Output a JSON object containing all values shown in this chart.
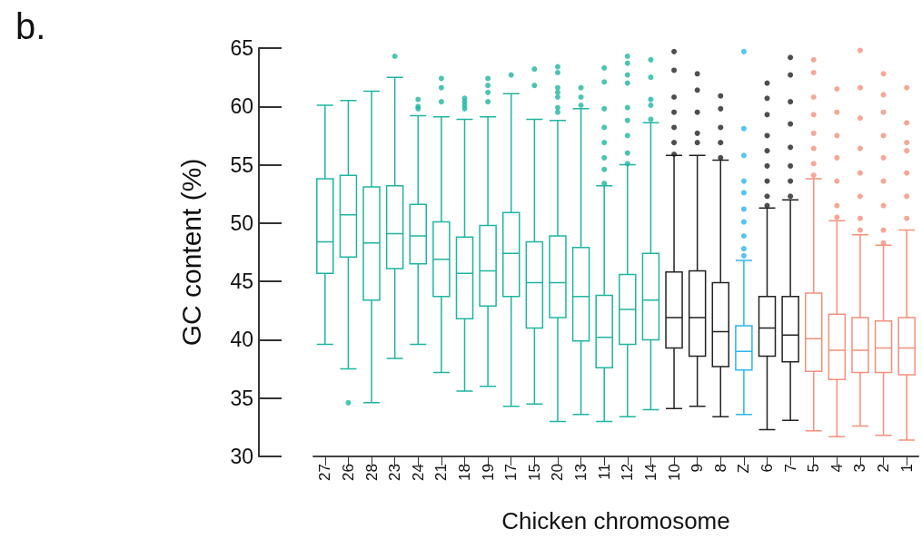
{
  "chart_data": {
    "type": "box",
    "title": "b.",
    "xlabel": "Chicken chromosome",
    "ylabel": "GC content (%)",
    "categories": [
      "27",
      "26",
      "28",
      "23",
      "24",
      "21",
      "18",
      "19",
      "17",
      "15",
      "20",
      "13",
      "11",
      "12",
      "14",
      "10",
      "9",
      "8",
      "Z",
      "6",
      "7",
      "5",
      "4",
      "3",
      "2",
      "1"
    ],
    "colors": [
      "#1fb5a0",
      "#1fb5a0",
      "#1fb5a0",
      "#1fb5a0",
      "#1fb5a0",
      "#1fb5a0",
      "#1fb5a0",
      "#1fb5a0",
      "#1fb5a0",
      "#1fb5a0",
      "#1fb5a0",
      "#1fb5a0",
      "#1fb5a0",
      "#1fb5a0",
      "#1fb5a0",
      "#222222",
      "#222222",
      "#222222",
      "#2bb5ee",
      "#222222",
      "#222222",
      "#f5907a",
      "#f5907a",
      "#f5907a",
      "#f5907a",
      "#f5907a"
    ],
    "ylim": [
      30,
      65
    ],
    "yticks": [
      30,
      35,
      40,
      45,
      50,
      55,
      60,
      65
    ],
    "grid": false,
    "boxes": [
      {
        "low": 39.6,
        "q1": 45.7,
        "median": 48.4,
        "q3": 53.8,
        "high": 60.1
      },
      {
        "low": 37.5,
        "q1": 47.1,
        "median": 50.7,
        "q3": 54.1,
        "high": 60.5,
        "outliers": [
          34.6
        ]
      },
      {
        "low": 34.6,
        "q1": 43.4,
        "median": 48.3,
        "q3": 53.1,
        "high": 61.3
      },
      {
        "low": 38.4,
        "q1": 46.1,
        "median": 49.1,
        "q3": 53.2,
        "high": 62.5,
        "outliers": [
          64.3
        ]
      },
      {
        "low": 39.6,
        "q1": 46.5,
        "median": 48.9,
        "q3": 51.6,
        "high": 59.2,
        "outliers": [
          60.6,
          60.0,
          59.8
        ]
      },
      {
        "low": 37.2,
        "q1": 43.7,
        "median": 46.9,
        "q3": 50.1,
        "high": 59.1,
        "outliers": [
          62.4,
          61.6,
          60.4
        ]
      },
      {
        "low": 35.6,
        "q1": 41.8,
        "median": 45.7,
        "q3": 48.8,
        "high": 58.9,
        "outliers": [
          60.7,
          60.4,
          60.1,
          59.8
        ]
      },
      {
        "low": 36.0,
        "q1": 42.9,
        "median": 45.9,
        "q3": 49.8,
        "high": 59.1,
        "outliers": [
          62.4,
          61.8,
          61.2,
          60.4
        ]
      },
      {
        "low": 34.3,
        "q1": 43.7,
        "median": 47.4,
        "q3": 50.9,
        "high": 61.1,
        "outliers": [
          62.7
        ]
      },
      {
        "low": 34.5,
        "q1": 41.0,
        "median": 44.9,
        "q3": 48.4,
        "high": 58.9,
        "outliers": [
          63.2,
          61.8
        ]
      },
      {
        "low": 33.0,
        "q1": 41.9,
        "median": 44.9,
        "q3": 48.9,
        "high": 58.8,
        "outliers": [
          63.4,
          62.9,
          61.6,
          61.2,
          60.8,
          59.9,
          59.5
        ]
      },
      {
        "low": 33.6,
        "q1": 39.9,
        "median": 43.7,
        "q3": 47.9,
        "high": 59.8,
        "outliers": [
          61.6,
          60.8,
          60.1
        ]
      },
      {
        "low": 33.0,
        "q1": 37.6,
        "median": 40.2,
        "q3": 43.8,
        "high": 53.2,
        "outliers": [
          63.3,
          62.1,
          59.8,
          58.2,
          56.9,
          55.6,
          54.6,
          53.4
        ]
      },
      {
        "low": 33.4,
        "q1": 39.6,
        "median": 42.6,
        "q3": 45.6,
        "high": 55.0,
        "outliers": [
          64.3,
          63.7,
          62.7,
          62.0,
          59.9,
          58.8,
          57.5,
          56.0,
          55.1
        ]
      },
      {
        "low": 34.0,
        "q1": 40.0,
        "median": 43.4,
        "q3": 47.4,
        "high": 58.6,
        "outliers": [
          64.0,
          62.5,
          60.6,
          60.1,
          58.9
        ]
      },
      {
        "low": 34.1,
        "q1": 39.3,
        "median": 41.9,
        "q3": 45.8,
        "high": 55.8,
        "outliers": [
          64.7,
          63.1,
          60.8,
          59.5,
          58.2,
          56.9,
          55.9
        ]
      },
      {
        "low": 34.3,
        "q1": 38.6,
        "median": 41.9,
        "q3": 45.9,
        "high": 55.8,
        "outliers": [
          62.8,
          61.4,
          59.5,
          57.7,
          56.9
        ]
      },
      {
        "low": 33.4,
        "q1": 37.7,
        "median": 40.7,
        "q3": 44.9,
        "high": 55.4,
        "outliers": [
          60.9,
          59.8,
          58.2,
          56.9,
          55.6
        ]
      },
      {
        "low": 33.6,
        "q1": 37.4,
        "median": 39.0,
        "q3": 41.2,
        "high": 46.8,
        "outliers": [
          64.7,
          58.1,
          55.8,
          53.6,
          52.6,
          51.2,
          50.1,
          48.9,
          47.8,
          47.2
        ]
      },
      {
        "low": 32.3,
        "q1": 38.6,
        "median": 41.0,
        "q3": 43.7,
        "high": 51.3,
        "outliers": [
          62.0,
          60.7,
          59.3,
          57.5,
          56.2,
          54.9,
          53.6,
          52.3,
          51.5
        ]
      },
      {
        "low": 33.1,
        "q1": 38.1,
        "median": 40.4,
        "q3": 43.7,
        "high": 52.0,
        "outliers": [
          64.2,
          62.7,
          60.4,
          58.5,
          56.5,
          54.9,
          53.6,
          52.3
        ]
      },
      {
        "low": 32.2,
        "q1": 37.3,
        "median": 40.1,
        "q3": 44.0,
        "high": 53.8,
        "outliers": [
          64.0,
          62.9,
          60.8,
          59.3,
          57.7,
          56.4,
          55.1,
          54.1
        ]
      },
      {
        "low": 31.7,
        "q1": 36.6,
        "median": 39.1,
        "q3": 42.2,
        "high": 50.2,
        "outliers": [
          61.5,
          59.5,
          57.5,
          55.6,
          53.6,
          51.5,
          50.5
        ]
      },
      {
        "low": 32.6,
        "q1": 37.2,
        "median": 39.1,
        "q3": 41.9,
        "high": 49.0,
        "outliers": [
          64.8,
          61.6,
          59.0,
          56.4,
          54.3,
          52.3,
          50.4,
          49.4
        ]
      },
      {
        "low": 31.8,
        "q1": 37.2,
        "median": 39.3,
        "q3": 41.6,
        "high": 48.1,
        "outliers": [
          62.8,
          61.0,
          59.5,
          57.5,
          55.6,
          53.6,
          51.5,
          49.4,
          48.3
        ]
      },
      {
        "low": 31.4,
        "q1": 37.0,
        "median": 39.3,
        "q3": 41.9,
        "high": 49.4,
        "outliers": [
          61.6,
          58.6,
          56.9,
          56.2,
          54.3,
          52.3,
          50.4
        ]
      }
    ]
  }
}
